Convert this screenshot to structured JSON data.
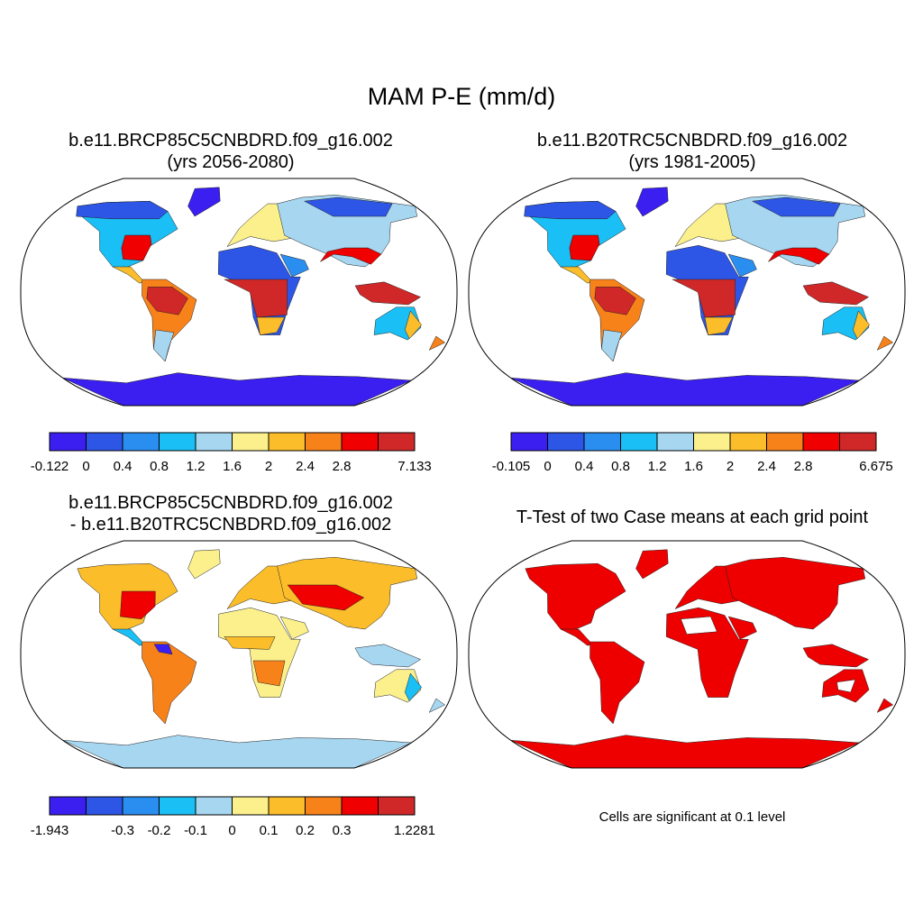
{
  "figure": {
    "title": "MAM P-E (mm/d)"
  },
  "panels": [
    {
      "id": "future",
      "title_line1": "b.e11.BRCP85C5CNBDRD.f09_g16.002",
      "title_line2": "(yrs 2056-2080)",
      "colorbar_labels": [
        "-0.122",
        "0",
        "0.4",
        "0.8",
        "1.2",
        "1.6",
        "2",
        "2.4",
        "2.8",
        "7.133"
      ],
      "antarctica_color": "#3a1ff0"
    },
    {
      "id": "historical",
      "title_line1": "b.e11.B20TRC5CNBDRD.f09_g16.002",
      "title_line2": "(yrs 1981-2005)",
      "colorbar_labels": [
        "-0.105",
        "0",
        "0.4",
        "0.8",
        "1.2",
        "1.6",
        "2",
        "2.4",
        "2.8",
        "6.675"
      ],
      "antarctica_color": "#3a1ff0"
    },
    {
      "id": "difference",
      "title_line1": "b.e11.BRCP85C5CNBDRD.f09_g16.002",
      "title_line2": "- b.e11.B20TRC5CNBDRD.f09_g16.002",
      "colorbar_labels": [
        "-1.943",
        "-0.3",
        "-0.2",
        "-0.1",
        "0",
        "0.1",
        "0.2",
        "0.3",
        "1.2281"
      ],
      "antarctica_color": "#a6d6f0"
    },
    {
      "id": "ttest",
      "title_line1": "T-Test of two Case means at each grid point",
      "note": "Cells are significant at 0.1 level",
      "significant_color": "#ee0000"
    }
  ],
  "colormap": [
    "#3a1ff0",
    "#2d55e6",
    "#2a8ef0",
    "#19bff5",
    "#a6d6f0",
    "#fbf08c",
    "#fbbd2a",
    "#f8821a",
    "#f00000",
    "#d02828"
  ]
}
